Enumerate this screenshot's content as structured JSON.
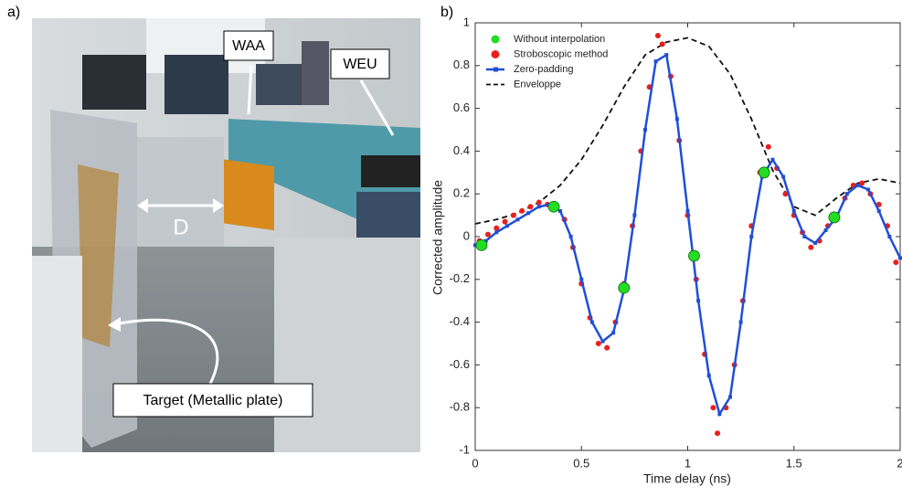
{
  "panel_a": {
    "label": "a)",
    "waa": "WAA",
    "weu": "WEU",
    "distance": "D",
    "target": "Target (Metallic plate)"
  },
  "chart_data": {
    "type": "line",
    "panel_label": "b)",
    "xlabel": "Time delay (ns)",
    "ylabel": "Corrected amplitude",
    "xlim": [
      0,
      2
    ],
    "ylim": [
      -1,
      1
    ],
    "xticks": [
      0,
      0.5,
      1,
      1.5,
      2
    ],
    "yticks": [
      -1,
      -0.8,
      -0.6,
      -0.4,
      -0.2,
      0,
      0.2,
      0.4,
      0.6,
      0.8,
      1
    ],
    "legend": "upper left",
    "series": [
      {
        "name": "Without interpolation",
        "color": "#22dd22",
        "kind": "scatter",
        "size": 6,
        "x": [
          0.03,
          0.37,
          0.7,
          1.03,
          1.36,
          1.69
        ],
        "values": [
          -0.04,
          0.14,
          -0.24,
          -0.09,
          0.3,
          0.09
        ]
      },
      {
        "name": "Stroboscopic method",
        "color": "#e8201c",
        "kind": "scatter",
        "size": 3,
        "x": [
          0.02,
          0.06,
          0.1,
          0.14,
          0.18,
          0.22,
          0.26,
          0.3,
          0.34,
          0.42,
          0.46,
          0.5,
          0.54,
          0.58,
          0.62,
          0.66,
          0.7,
          0.74,
          0.78,
          0.82,
          0.86,
          0.88,
          0.92,
          0.96,
          1.0,
          1.04,
          1.08,
          1.12,
          1.14,
          1.18,
          1.22,
          1.26,
          1.3,
          1.34,
          1.38,
          1.42,
          1.46,
          1.5,
          1.54,
          1.58,
          1.62,
          1.66,
          1.7,
          1.74,
          1.78,
          1.82,
          1.86,
          1.9,
          1.94,
          1.98
        ],
        "values": [
          -0.02,
          0.01,
          0.04,
          0.07,
          0.1,
          0.12,
          0.14,
          0.16,
          0.15,
          0.08,
          -0.05,
          -0.22,
          -0.38,
          -0.5,
          -0.52,
          -0.4,
          -0.22,
          0.05,
          0.4,
          0.7,
          0.94,
          0.9,
          0.75,
          0.45,
          0.1,
          -0.2,
          -0.55,
          -0.8,
          -0.92,
          -0.8,
          -0.6,
          -0.3,
          0.05,
          0.3,
          0.42,
          0.32,
          0.2,
          0.1,
          0.02,
          -0.05,
          -0.02,
          0.05,
          0.1,
          0.18,
          0.24,
          0.25,
          0.2,
          0.15,
          0.05,
          -0.12
        ]
      },
      {
        "name": "Zero-padding",
        "color": "#1f4fd8",
        "kind": "line",
        "markers": true,
        "dash": false,
        "x": [
          0,
          0.05,
          0.1,
          0.15,
          0.2,
          0.25,
          0.3,
          0.35,
          0.4,
          0.45,
          0.5,
          0.55,
          0.6,
          0.65,
          0.7,
          0.75,
          0.8,
          0.85,
          0.9,
          0.95,
          1.0,
          1.05,
          1.1,
          1.15,
          1.2,
          1.25,
          1.3,
          1.35,
          1.4,
          1.45,
          1.5,
          1.55,
          1.6,
          1.65,
          1.7,
          1.75,
          1.8,
          1.85,
          1.9,
          1.95,
          2.0
        ],
        "values": [
          -0.04,
          -0.02,
          0.02,
          0.05,
          0.08,
          0.11,
          0.14,
          0.15,
          0.12,
          0.0,
          -0.2,
          -0.4,
          -0.49,
          -0.45,
          -0.25,
          0.1,
          0.5,
          0.82,
          0.85,
          0.55,
          0.12,
          -0.3,
          -0.65,
          -0.83,
          -0.75,
          -0.4,
          0.0,
          0.28,
          0.36,
          0.28,
          0.12,
          0.0,
          -0.03,
          0.03,
          0.09,
          0.2,
          0.24,
          0.22,
          0.12,
          0.0,
          -0.1
        ]
      },
      {
        "name": "Enveloppe",
        "color": "#111111",
        "kind": "line",
        "markers": false,
        "dash": true,
        "x": [
          0,
          0.1,
          0.2,
          0.3,
          0.4,
          0.5,
          0.6,
          0.7,
          0.8,
          0.9,
          1.0,
          1.1,
          1.2,
          1.3,
          1.4,
          1.5,
          1.6,
          1.7,
          1.8,
          1.9,
          2.0
        ],
        "values": [
          0.06,
          0.08,
          0.11,
          0.16,
          0.24,
          0.36,
          0.52,
          0.7,
          0.85,
          0.91,
          0.93,
          0.89,
          0.76,
          0.55,
          0.31,
          0.14,
          0.1,
          0.18,
          0.25,
          0.27,
          0.25
        ]
      }
    ]
  }
}
